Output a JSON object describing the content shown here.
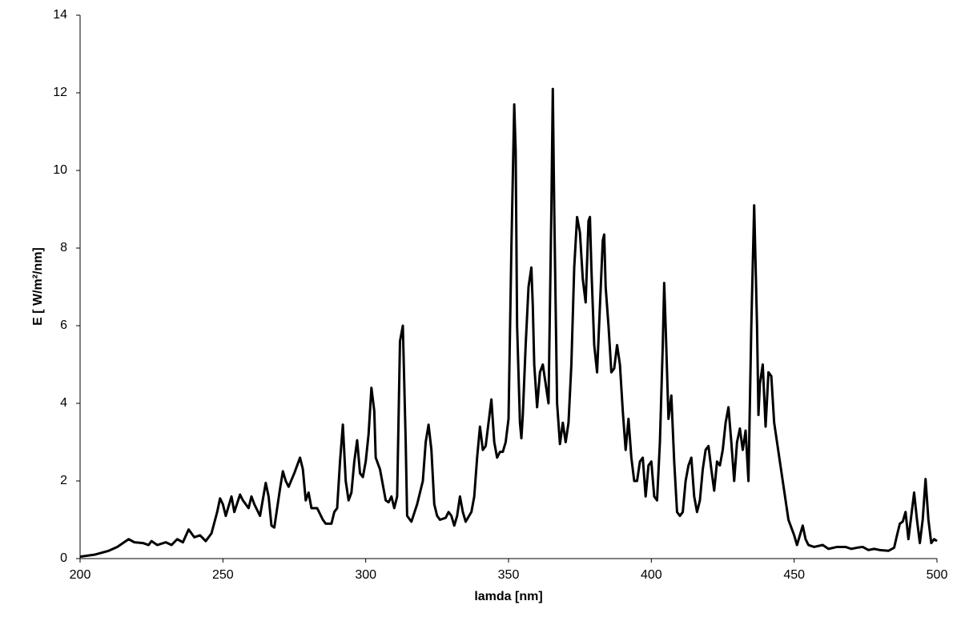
{
  "chart_data": {
    "type": "line",
    "x_label": "lamda [nm]",
    "y_label": "E [ W/m²/nm]",
    "xlim": [
      200,
      500
    ],
    "xticks": [
      200,
      250,
      300,
      350,
      400,
      450,
      500
    ],
    "ylim": [
      0,
      14
    ],
    "yticks": [
      0,
      2,
      4,
      6,
      8,
      10,
      12,
      14
    ],
    "x": [
      200,
      205,
      210,
      213,
      215,
      217,
      219,
      222,
      224,
      225,
      227,
      230,
      232,
      234,
      236,
      238,
      240,
      242,
      244,
      246,
      248,
      249,
      250,
      251,
      253,
      254,
      256,
      257,
      259,
      260,
      261,
      263,
      265,
      266,
      267,
      268,
      270,
      271,
      272,
      273,
      275,
      277,
      278,
      279,
      280,
      281,
      283,
      285,
      286,
      288,
      289,
      290,
      291,
      292,
      293,
      294,
      295,
      296,
      297,
      298,
      299,
      300,
      301,
      302,
      303,
      303.5,
      305,
      306,
      307,
      308,
      309,
      310,
      311,
      312,
      313,
      314,
      314.5,
      316,
      318,
      320,
      321,
      322,
      323,
      324,
      325,
      326,
      328,
      329,
      330,
      331,
      332,
      333,
      334,
      335,
      337,
      338,
      339,
      340,
      341,
      342,
      343,
      344,
      345,
      346,
      347,
      348,
      349,
      350,
      351,
      352,
      352.5,
      353,
      354,
      354.5,
      355,
      356,
      357,
      358,
      358.5,
      359,
      360,
      361,
      362,
      363,
      364,
      365,
      365.5,
      366,
      367,
      368,
      369,
      370,
      371,
      372,
      373,
      374,
      375,
      376,
      377,
      378,
      378.5,
      379,
      380,
      381,
      382,
      383,
      383.5,
      384,
      385,
      386,
      387,
      388,
      389,
      390,
      391,
      392,
      393,
      394,
      395,
      396,
      397,
      398,
      399,
      400,
      401,
      402,
      403,
      404,
      404.5,
      405,
      406,
      407,
      408,
      409,
      410,
      411,
      412,
      413,
      414,
      415,
      416,
      417,
      418,
      419,
      420,
      421,
      422,
      423,
      424,
      425,
      426,
      427,
      428,
      429,
      430,
      431,
      432,
      433,
      434,
      435,
      436,
      437,
      437.5,
      438,
      439,
      440,
      441,
      442,
      443,
      444,
      445,
      446,
      447,
      448,
      449,
      450,
      451,
      452,
      453,
      454,
      455,
      457,
      460,
      462,
      465,
      468,
      470,
      472,
      474,
      476,
      478,
      480,
      483,
      485,
      486,
      487,
      488,
      489,
      490,
      491,
      492,
      493,
      494,
      495,
      496,
      497,
      498,
      499,
      500
    ],
    "series": [
      {
        "color": "#000000",
        "values": [
          0.05,
          0.1,
          0.2,
          0.3,
          0.4,
          0.5,
          0.42,
          0.4,
          0.35,
          0.45,
          0.35,
          0.42,
          0.35,
          0.5,
          0.42,
          0.75,
          0.55,
          0.6,
          0.45,
          0.65,
          1.2,
          1.55,
          1.4,
          1.1,
          1.6,
          1.2,
          1.65,
          1.5,
          1.3,
          1.6,
          1.4,
          1.1,
          1.95,
          1.6,
          0.85,
          0.8,
          1.8,
          2.25,
          2.0,
          1.85,
          2.2,
          2.6,
          2.3,
          1.5,
          1.7,
          1.3,
          1.3,
          1.0,
          0.9,
          0.9,
          1.2,
          1.3,
          2.5,
          3.45,
          2.0,
          1.5,
          1.7,
          2.5,
          3.05,
          2.2,
          2.1,
          2.5,
          3.2,
          4.4,
          3.8,
          2.6,
          2.3,
          1.9,
          1.5,
          1.45,
          1.6,
          1.3,
          1.6,
          5.6,
          6.0,
          3.0,
          1.1,
          0.95,
          1.4,
          2.0,
          3.0,
          3.45,
          2.8,
          1.4,
          1.1,
          1.0,
          1.05,
          1.2,
          1.1,
          0.85,
          1.1,
          1.6,
          1.2,
          0.95,
          1.2,
          1.6,
          2.6,
          3.4,
          2.8,
          2.9,
          3.5,
          4.1,
          3.0,
          2.6,
          2.75,
          2.75,
          3.0,
          3.6,
          8.0,
          11.7,
          10.5,
          6.0,
          3.5,
          3.1,
          3.7,
          5.5,
          7.0,
          7.5,
          6.5,
          5.0,
          3.9,
          4.8,
          5.0,
          4.5,
          4.0,
          9.0,
          12.1,
          9.0,
          4.0,
          2.95,
          3.5,
          3.0,
          3.5,
          5.0,
          7.5,
          8.8,
          8.4,
          7.2,
          6.6,
          8.7,
          8.8,
          7.5,
          5.5,
          4.8,
          6.5,
          8.2,
          8.35,
          7.0,
          6.0,
          4.8,
          4.9,
          5.5,
          5.0,
          3.8,
          2.8,
          3.6,
          2.6,
          2.0,
          2.0,
          2.5,
          2.6,
          1.6,
          2.4,
          2.5,
          1.6,
          1.5,
          3.0,
          5.5,
          7.1,
          6.0,
          3.6,
          4.2,
          2.5,
          1.2,
          1.1,
          1.2,
          2.0,
          2.4,
          2.6,
          1.6,
          1.2,
          1.5,
          2.3,
          2.8,
          2.9,
          2.3,
          1.75,
          2.5,
          2.4,
          2.8,
          3.5,
          3.9,
          3.0,
          2.0,
          3.0,
          3.35,
          2.8,
          3.3,
          2.0,
          6.0,
          9.1,
          6.0,
          3.7,
          4.5,
          5.0,
          3.4,
          4.8,
          4.7,
          3.5,
          3.0,
          2.5,
          2.0,
          1.5,
          1.0,
          0.8,
          0.6,
          0.35,
          0.6,
          0.85,
          0.5,
          0.35,
          0.3,
          0.35,
          0.25,
          0.3,
          0.3,
          0.25,
          0.28,
          0.3,
          0.22,
          0.25,
          0.22,
          0.2,
          0.28,
          0.6,
          0.9,
          0.95,
          1.2,
          0.5,
          1.1,
          1.7,
          1.0,
          0.4,
          1.0,
          2.05,
          1.0,
          0.4,
          0.5,
          0.45
        ]
      }
    ]
  }
}
